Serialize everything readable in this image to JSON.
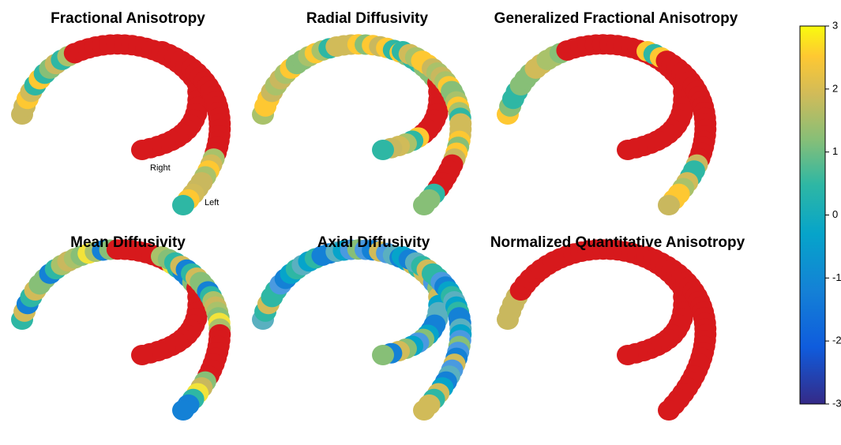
{
  "panels": [
    {
      "title": "Fractional Anisotropy",
      "labels": [
        "Right",
        "Left"
      ]
    },
    {
      "title": "Radial Diffusivity"
    },
    {
      "title": "Generalized Fractional Anisotropy"
    },
    {
      "title": "Mean Diffusivity"
    },
    {
      "title": "Axial Diffusivity"
    },
    {
      "title": "Normalized Quantitative Anisotropy"
    }
  ],
  "colorbar": {
    "lim": [
      -3,
      3
    ],
    "ticks": [
      3,
      2,
      1,
      0,
      -1,
      -2,
      -3
    ]
  }
}
